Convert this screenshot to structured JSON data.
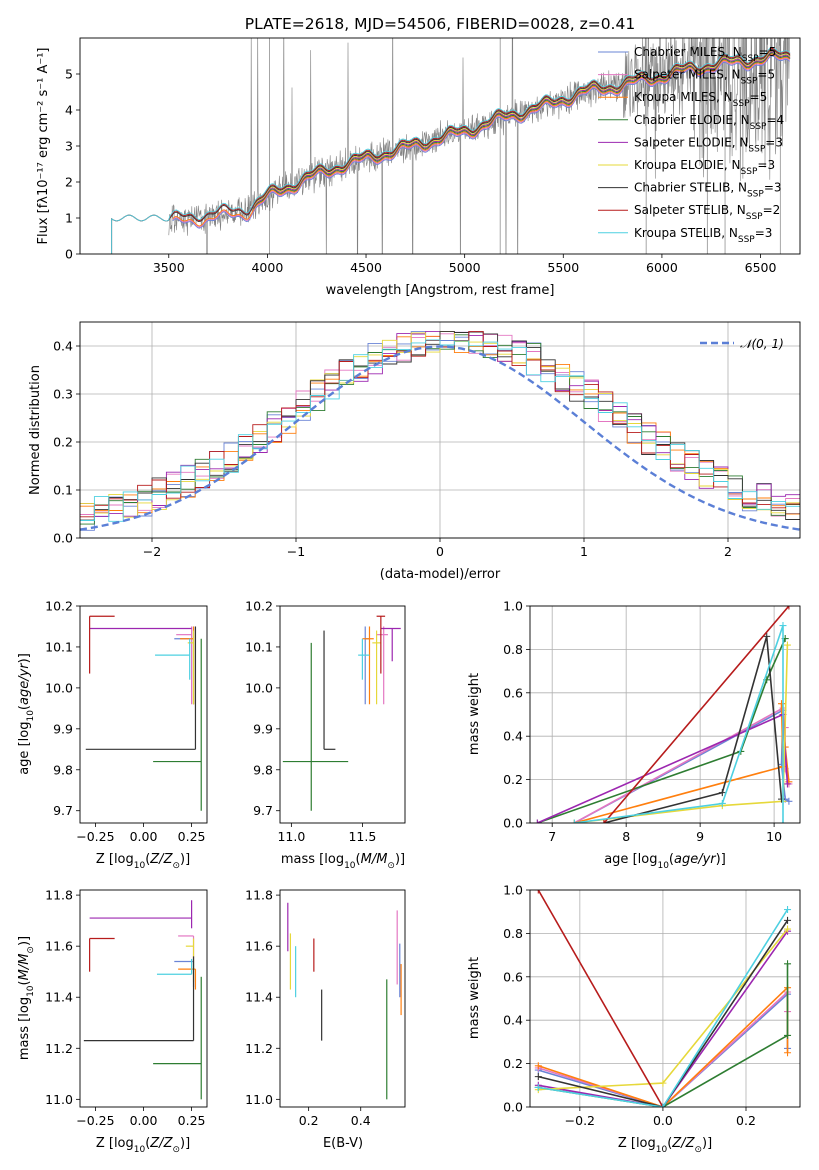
{
  "figure_title": "PLATE=2618, MJD=54506, FIBERID=0028, z=0.41",
  "colors": {
    "Chabrier MILES": "#6a84d6",
    "Salpeter MILES": "#e377c2",
    "Kroupa MILES": "#ff7f0e",
    "Chabrier ELODIE": "#2e7d32",
    "Salpeter ELODIE": "#9c27b0",
    "Kroupa ELODIE": "#e6d83a",
    "Chabrier STELIB": "#333333",
    "Salpeter STELIB": "#b71c1c",
    "Kroupa STELIB": "#4dd0e1",
    "normal": "#5b7fd6",
    "grid": "#b0b0b0",
    "spectrum": "#808080"
  },
  "chart_data": [
    {
      "id": "spectrum",
      "type": "line",
      "title": "PLATE=2618, MJD=54506, FIBERID=0028, z=0.41",
      "xlabel": "wavelength [Angstrom, rest frame]",
      "ylabel": "Flux [f_λ 10^-17 erg cm^-2 s^-1 A^-1]",
      "xlim": [
        3050,
        6700
      ],
      "ylim": [
        0,
        6
      ],
      "xticks": [
        3500,
        4000,
        4500,
        5000,
        5500,
        6000,
        6500
      ],
      "yticks": [
        0,
        1,
        2,
        3,
        4,
        5
      ],
      "grid": false,
      "legend": "top-right",
      "legend_entries": [
        {
          "model": "Chabrier MILES",
          "label": "Chabrier MILES, N",
          "sub": "SSP",
          "suffix": "=5"
        },
        {
          "model": "Salpeter MILES",
          "label": "Salpeter MILES, N",
          "sub": "SSP",
          "suffix": "=5"
        },
        {
          "model": "Kroupa MILES",
          "label": "Kroupa MILES, N",
          "sub": "SSP",
          "suffix": "=5"
        },
        {
          "model": "Chabrier ELODIE",
          "label": "Chabrier ELODIE, N",
          "sub": "SSP",
          "suffix": "=4"
        },
        {
          "model": "Salpeter ELODIE",
          "label": "Salpeter ELODIE, N",
          "sub": "SSP",
          "suffix": "=3"
        },
        {
          "model": "Kroupa ELODIE",
          "label": "Kroupa ELODIE, N",
          "sub": "SSP",
          "suffix": "=3"
        },
        {
          "model": "Chabrier STELIB",
          "label": "Chabrier STELIB, N",
          "sub": "SSP",
          "suffix": "=3"
        },
        {
          "model": "Salpeter STELIB",
          "label": "Salpeter STELIB, N",
          "sub": "SSP",
          "suffix": "=2"
        },
        {
          "model": "Kroupa STELIB",
          "label": "Kroupa STELIB, N",
          "sub": "SSP",
          "suffix": "=3"
        }
      ],
      "data_observed": {
        "x_start": 3500,
        "x_end": 6650,
        "continuum": [
          [
            3500,
            0.9
          ],
          [
            3700,
            1.05
          ],
          [
            3900,
            1.2
          ],
          [
            4000,
            1.6
          ],
          [
            4200,
            2.1
          ],
          [
            4400,
            2.5
          ],
          [
            4600,
            2.8
          ],
          [
            4800,
            3.1
          ],
          [
            5000,
            3.4
          ],
          [
            5200,
            3.8
          ],
          [
            5400,
            4.1
          ],
          [
            5600,
            4.5
          ],
          [
            5800,
            4.7
          ],
          [
            6000,
            4.95
          ],
          [
            6200,
            5.2
          ],
          [
            6400,
            5.35
          ],
          [
            6650,
            5.5
          ]
        ]
      },
      "models_start": {
        "MILES": 3520,
        "ELODIE": 3930,
        "STELIB": 3210
      }
    },
    {
      "id": "residuals",
      "type": "line",
      "xlabel": "(data-model)/error",
      "ylabel": "Normed distribution",
      "xlim": [
        -2.5,
        2.5
      ],
      "ylim": [
        0,
        0.45
      ],
      "xticks": [
        -2,
        -1,
        0,
        1,
        2
      ],
      "yticks": [
        0.0,
        0.1,
        0.2,
        0.3,
        0.4
      ],
      "grid": true,
      "legend": "top-right",
      "legend_label": "N(0,1)"
    },
    {
      "id": "age-vs-Z",
      "type": "scatter",
      "xlabel": "Z [log10(Z/Z☉)]",
      "ylabel": "age [log10(age/yr)]",
      "xlim": [
        -0.33,
        0.33
      ],
      "ylim": [
        9.67,
        10.2
      ],
      "xticks": [
        -0.25,
        0.0,
        0.25
      ],
      "yticks": [
        9.7,
        9.8,
        9.9,
        10.0,
        10.1,
        10.2
      ],
      "grid": false,
      "points": [
        {
          "model": "Chabrier MILES",
          "x": 0.26,
          "y": 10.12,
          "xerr": [
            0.1,
            0.0
          ],
          "yerr": [
            0.16,
            0.03
          ]
        },
        {
          "model": "Salpeter MILES",
          "x": 0.25,
          "y": 10.13,
          "xerr": [
            0.08,
            0.0
          ],
          "yerr": [
            0.17,
            0.02
          ]
        },
        {
          "model": "Kroupa MILES",
          "x": 0.26,
          "y": 10.12,
          "xerr": [
            0.07,
            0.0
          ],
          "yerr": [
            0.16,
            0.03
          ]
        },
        {
          "model": "Chabrier ELODIE",
          "x": 0.3,
          "y": 9.82,
          "xerr": [
            0.25,
            0.0
          ],
          "yerr": [
            0.12,
            0.3
          ]
        },
        {
          "model": "Salpeter ELODIE",
          "x": 0.25,
          "y": 10.145,
          "xerr": [
            0.53,
            0.0
          ],
          "yerr": [
            0.0,
            0.0
          ]
        },
        {
          "model": "Kroupa ELODIE",
          "x": 0.26,
          "y": 10.11,
          "xerr": [
            0.03,
            0.0
          ],
          "yerr": [
            0.15,
            0.03
          ]
        },
        {
          "model": "Chabrier STELIB",
          "x": 0.27,
          "y": 9.85,
          "xerr": [
            0.57,
            0.0
          ],
          "yerr": [
            0.0,
            0.3
          ]
        },
        {
          "model": "Salpeter STELIB",
          "x": -0.28,
          "y": 10.175,
          "xerr": [
            0.0,
            0.13
          ],
          "yerr": [
            0.14,
            0.0
          ]
        },
        {
          "model": "Kroupa STELIB",
          "x": 0.24,
          "y": 10.08,
          "xerr": [
            0.18,
            0.0
          ],
          "yerr": [
            0.06,
            0.04
          ]
        }
      ]
    },
    {
      "id": "age-vs-mass",
      "type": "scatter",
      "xlabel": "mass [log10(M/M☉)]",
      "ylabel": "",
      "xlim": [
        10.92,
        11.8
      ],
      "ylim": [
        9.67,
        10.2
      ],
      "xticks": [
        11.0,
        11.5
      ],
      "yticks": [
        9.7,
        9.8,
        9.9,
        10.0,
        10.1,
        10.2
      ],
      "grid": false,
      "points": [
        {
          "model": "Chabrier MILES",
          "x": 11.52,
          "y": 10.12,
          "xerr": [
            0.0,
            0.03
          ],
          "yerr": [
            0.16,
            0.03
          ]
        },
        {
          "model": "Salpeter MILES",
          "x": 11.65,
          "y": 10.13,
          "xerr": [
            0.05,
            0.03
          ],
          "yerr": [
            0.17,
            0.02
          ]
        },
        {
          "model": "Kroupa MILES",
          "x": 11.55,
          "y": 10.12,
          "xerr": [
            0.05,
            0.03
          ],
          "yerr": [
            0.16,
            0.03
          ]
        },
        {
          "model": "Chabrier ELODIE",
          "x": 11.14,
          "y": 9.82,
          "xerr": [
            0.2,
            0.26
          ],
          "yerr": [
            0.12,
            0.29
          ]
        },
        {
          "model": "Salpeter ELODIE",
          "x": 11.71,
          "y": 10.145,
          "xerr": [
            0.08,
            0.06
          ],
          "yerr": [
            0.08,
            0.0
          ]
        },
        {
          "model": "Kroupa ELODIE",
          "x": 11.6,
          "y": 10.11,
          "xerr": [
            0.03,
            0.03
          ],
          "yerr": [
            0.15,
            0.03
          ]
        },
        {
          "model": "Chabrier STELIB",
          "x": 11.23,
          "y": 9.85,
          "xerr": [
            0.0,
            0.08
          ],
          "yerr": [
            0.0,
            0.29
          ]
        },
        {
          "model": "Salpeter STELIB",
          "x": 11.63,
          "y": 10.175,
          "xerr": [
            0.03,
            0.03
          ],
          "yerr": [
            0.14,
            0.0
          ]
        },
        {
          "model": "Kroupa STELIB",
          "x": 11.5,
          "y": 10.08,
          "xerr": [
            0.03,
            0.05
          ],
          "yerr": [
            0.06,
            0.04
          ]
        }
      ]
    },
    {
      "id": "weight-vs-age",
      "type": "line",
      "xlabel": "age [log10(age/yr)]",
      "ylabel": "mass weight",
      "xlim": [
        6.7,
        10.35
      ],
      "ylim": [
        0,
        1
      ],
      "xticks": [
        7,
        8,
        9,
        10
      ],
      "yticks": [
        0.0,
        0.2,
        0.4,
        0.6,
        0.8,
        1.0
      ],
      "grid": true,
      "series": [
        {
          "model": "Chabrier MILES",
          "x": [
            7.3,
            10.12,
            10.1,
            10.15,
            10.2
          ],
          "y": [
            0.0,
            0.52,
            0.27,
            0.11,
            0.1
          ]
        },
        {
          "model": "Salpeter MILES",
          "x": [
            7.3,
            10.12,
            10.15,
            10.15,
            10.2
          ],
          "y": [
            0.0,
            0.53,
            0.44,
            0.25,
            0.18
          ]
        },
        {
          "model": "Kroupa MILES",
          "x": [
            7.3,
            10.12,
            10.1,
            10.15,
            10.2
          ],
          "y": [
            0.0,
            0.26,
            0.55,
            0.35,
            0.19
          ]
        },
        {
          "model": "Chabrier ELODIE",
          "x": [
            6.8,
            9.55,
            9.9,
            10.15
          ],
          "y": [
            0.0,
            0.33,
            0.66,
            0.85
          ]
        },
        {
          "model": "Salpeter ELODIE",
          "x": [
            6.8,
            10.12,
            10.18
          ],
          "y": [
            0.0,
            0.5,
            0.18
          ]
        },
        {
          "model": "Kroupa ELODIE",
          "x": [
            7.3,
            9.3,
            10.12,
            10.18
          ],
          "y": [
            0.0,
            0.08,
            0.1,
            0.82
          ]
        },
        {
          "model": "Chabrier STELIB",
          "x": [
            7.7,
            9.3,
            9.9,
            10.1
          ],
          "y": [
            0.0,
            0.14,
            0.86,
            0.11
          ]
        },
        {
          "model": "Salpeter STELIB",
          "x": [
            7.7,
            10.2,
            7.7
          ],
          "y": [
            0.0,
            1.0,
            0.0
          ]
        },
        {
          "model": "Kroupa STELIB",
          "x": [
            7.3,
            9.3,
            10.12,
            10.12
          ],
          "y": [
            0.0,
            0.09,
            0.91,
            0.0
          ]
        }
      ]
    },
    {
      "id": "mass-vs-Z",
      "type": "scatter",
      "xlabel": "Z [log10(Z/Z☉)]",
      "ylabel": "mass [log10(M/M☉)]",
      "xlim": [
        -0.33,
        0.33
      ],
      "ylim": [
        10.97,
        11.82
      ],
      "xticks": [
        -0.25,
        0.0,
        0.25
      ],
      "yticks": [
        11.0,
        11.2,
        11.4,
        11.6,
        11.8
      ],
      "grid": false,
      "points": [
        {
          "model": "Chabrier MILES",
          "x": 0.26,
          "y": 11.54,
          "xerr": [
            0.1,
            0.0
          ],
          "yerr": [
            0.1,
            0.0
          ]
        },
        {
          "model": "Salpeter MILES",
          "x": 0.26,
          "y": 11.64,
          "xerr": [
            0.08,
            0.0
          ],
          "yerr": [
            0.1,
            0.0
          ]
        },
        {
          "model": "Kroupa MILES",
          "x": 0.27,
          "y": 11.51,
          "xerr": [
            0.09,
            0.0
          ],
          "yerr": [
            0.08,
            0.0
          ]
        },
        {
          "model": "Chabrier ELODIE",
          "x": 0.3,
          "y": 11.14,
          "xerr": [
            0.25,
            0.0
          ],
          "yerr": [
            0.14,
            0.34
          ]
        },
        {
          "model": "Salpeter ELODIE",
          "x": 0.25,
          "y": 11.71,
          "xerr": [
            0.53,
            0.0
          ],
          "yerr": [
            0.04,
            0.07
          ]
        },
        {
          "model": "Kroupa ELODIE",
          "x": 0.26,
          "y": 11.6,
          "xerr": [
            0.04,
            0.0
          ],
          "yerr": [
            0.14,
            0.03
          ]
        },
        {
          "model": "Chabrier STELIB",
          "x": 0.26,
          "y": 11.23,
          "xerr": [
            0.57,
            0.0
          ],
          "yerr": [
            0.0,
            0.33
          ]
        },
        {
          "model": "Salpeter STELIB",
          "x": -0.28,
          "y": 11.63,
          "xerr": [
            0.0,
            0.13
          ],
          "yerr": [
            0.13,
            0.0
          ]
        },
        {
          "model": "Kroupa STELIB",
          "x": 0.25,
          "y": 11.49,
          "xerr": [
            0.18,
            0.0
          ],
          "yerr": [
            0.0,
            0.06
          ]
        }
      ]
    },
    {
      "id": "mass-vs-EBV",
      "type": "scatter",
      "xlabel": "E(B-V)",
      "ylabel": "",
      "xlim": [
        0.09,
        0.57
      ],
      "ylim": [
        10.97,
        11.82
      ],
      "xticks": [
        0.2,
        0.4
      ],
      "yticks": [
        11.0,
        11.2,
        11.4,
        11.6,
        11.8
      ],
      "grid": false,
      "points": [
        {
          "model": "Chabrier MILES",
          "x": 0.55,
          "y": 11.54,
          "yerr": [
            0.14,
            0.07
          ]
        },
        {
          "model": "Salpeter MILES",
          "x": 0.54,
          "y": 11.6,
          "yerr": [
            0.15,
            0.14
          ]
        },
        {
          "model": "Kroupa MILES",
          "x": 0.555,
          "y": 11.45,
          "yerr": [
            0.12,
            0.08
          ]
        },
        {
          "model": "Chabrier ELODIE",
          "x": 0.5,
          "y": 11.2,
          "yerr": [
            0.2,
            0.27
          ]
        },
        {
          "model": "Salpeter ELODIE",
          "x": 0.12,
          "y": 11.7,
          "yerr": [
            0.12,
            0.07
          ]
        },
        {
          "model": "Kroupa ELODIE",
          "x": 0.13,
          "y": 11.55,
          "yerr": [
            0.12,
            0.1
          ]
        },
        {
          "model": "Chabrier STELIB",
          "x": 0.25,
          "y": 11.33,
          "yerr": [
            0.1,
            0.1
          ]
        },
        {
          "model": "Salpeter STELIB",
          "x": 0.22,
          "y": 11.58,
          "yerr": [
            0.08,
            0.05
          ]
        },
        {
          "model": "Kroupa STELIB",
          "x": 0.15,
          "y": 11.5,
          "yerr": [
            0.1,
            0.1
          ]
        }
      ]
    },
    {
      "id": "weight-vs-Z",
      "type": "line",
      "xlabel": "Z [log10(Z/Z☉)]",
      "ylabel": "mass weight",
      "xlim": [
        -0.32,
        0.33
      ],
      "ylim": [
        0,
        1
      ],
      "xticks": [
        -0.2,
        0.0,
        0.2
      ],
      "yticks": [
        0.0,
        0.2,
        0.4,
        0.6,
        0.8,
        1.0
      ],
      "grid": true,
      "series": [
        {
          "model": "Chabrier MILES",
          "x": [
            -0.3,
            0.0,
            0.3,
            0.3
          ],
          "y": [
            0.17,
            0.0,
            0.52,
            0.27
          ]
        },
        {
          "model": "Salpeter MILES",
          "x": [
            -0.3,
            0.0,
            0.3,
            0.3
          ],
          "y": [
            0.18,
            0.0,
            0.53,
            0.44
          ]
        },
        {
          "model": "Kroupa MILES",
          "x": [
            -0.3,
            0.0,
            0.3,
            0.3
          ],
          "y": [
            0.19,
            0.0,
            0.55,
            0.25
          ]
        },
        {
          "model": "Chabrier ELODIE",
          "x": [
            -0.3,
            0.0,
            0.3,
            0.3
          ],
          "y": [
            0.09,
            0.0,
            0.33,
            0.66
          ]
        },
        {
          "model": "Salpeter ELODIE",
          "x": [
            -0.3,
            0.0,
            0.3
          ],
          "y": [
            0.1,
            0.0,
            0.81
          ]
        },
        {
          "model": "Kroupa ELODIE",
          "x": [
            -0.3,
            0.0,
            0.3
          ],
          "y": [
            0.08,
            0.11,
            0.82
          ]
        },
        {
          "model": "Chabrier STELIB",
          "x": [
            -0.3,
            0.0,
            0.3
          ],
          "y": [
            0.14,
            0.0,
            0.86
          ]
        },
        {
          "model": "Salpeter STELIB",
          "x": [
            -0.3,
            0.0
          ],
          "y": [
            1.0,
            0.0
          ]
        },
        {
          "model": "Kroupa STELIB",
          "x": [
            -0.3,
            0.0,
            0.3
          ],
          "y": [
            0.09,
            0.0,
            0.91
          ]
        }
      ]
    }
  ]
}
